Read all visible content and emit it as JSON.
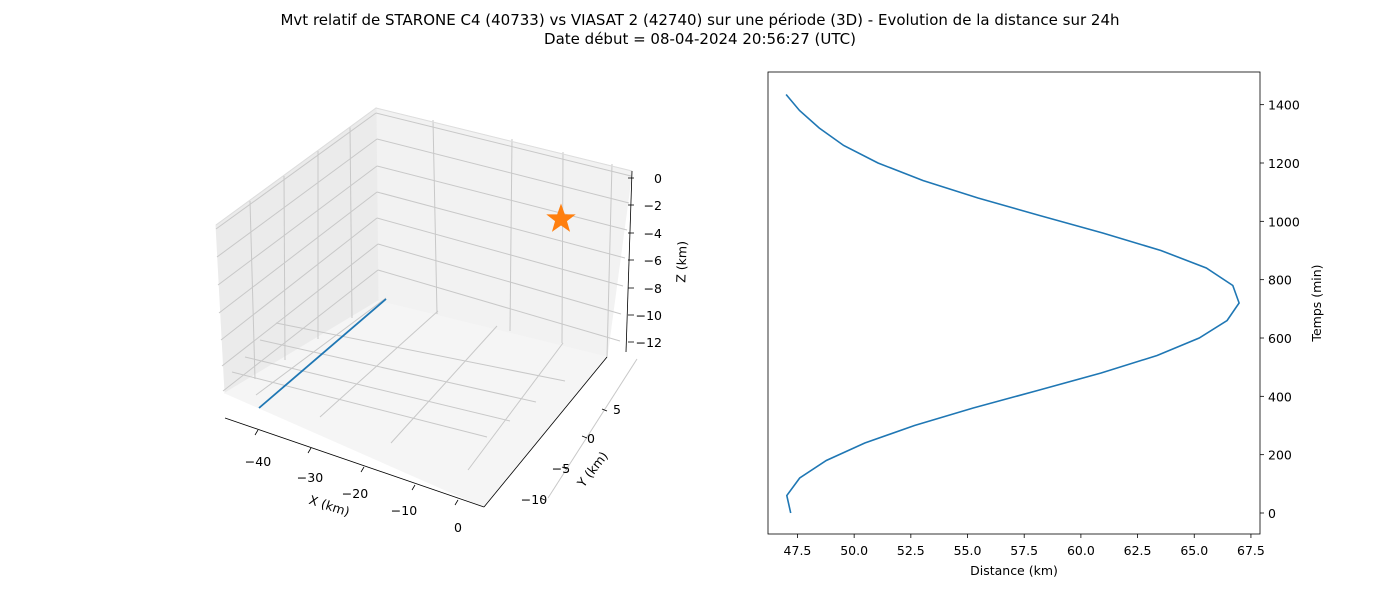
{
  "figure": {
    "title_line1": "Mvt relatif de STARONE C4 (40733) vs VIASAT 2 (42740) sur une période (3D) - Evolution de la distance sur 24h",
    "title_line2": "Date début = 08-04-2024 20:56:27 (UTC)"
  },
  "chart_data": [
    {
      "type": "line3d",
      "xlabel": "X (km)",
      "ylabel": "Y (km)",
      "zlabel": "Z (km)",
      "x_ticks": [
        "−40",
        "−30",
        "−20",
        "−10",
        "0"
      ],
      "y_ticks": [
        "5",
        "0",
        "−5",
        "−10"
      ],
      "z_ticks": [
        "0",
        "−2",
        "−4",
        "−6",
        "−8",
        "−10",
        "−12"
      ],
      "grid": true,
      "series": [
        {
          "kind": "line",
          "color": "#1f77b4",
          "x": [
            -42.5,
            -23.0
          ],
          "y": [
            -3.5,
            9.5
          ],
          "z": [
            -13.0,
            -13.0
          ]
        },
        {
          "kind": "marker",
          "marker": "star",
          "color": "#ff7f0e",
          "x": [
            0.0
          ],
          "y": [
            0.0
          ],
          "z": [
            0.0
          ]
        }
      ]
    },
    {
      "type": "line",
      "xlabel": "Distance (km)",
      "ylabel": "Temps (min)",
      "xlim": [
        46.2,
        67.9
      ],
      "ylim": [
        -72,
        1512
      ],
      "x_ticks": [
        "47.5",
        "50.0",
        "52.5",
        "55.0",
        "57.5",
        "60.0",
        "62.5",
        "65.0",
        "67.5"
      ],
      "y_ticks": [
        "0",
        "200",
        "400",
        "600",
        "800",
        "1000",
        "1200",
        "1400"
      ],
      "grid": false,
      "series": [
        {
          "color": "#1f77b4",
          "x": [
            47.2,
            47.03,
            47.6,
            48.77,
            50.47,
            52.66,
            55.25,
            58.09,
            60.89,
            63.36,
            65.22,
            66.45,
            66.98,
            66.7,
            65.53,
            63.53,
            60.96,
            58.18,
            55.46,
            53.03,
            51.05,
            49.54,
            48.46,
            47.59,
            47.0
          ],
          "y": [
            0,
            60,
            120,
            180,
            240,
            300,
            360,
            420,
            480,
            540,
            600,
            660,
            720,
            780,
            840,
            900,
            960,
            1020,
            1080,
            1140,
            1200,
            1260,
            1320,
            1380,
            1435
          ]
        }
      ]
    }
  ]
}
